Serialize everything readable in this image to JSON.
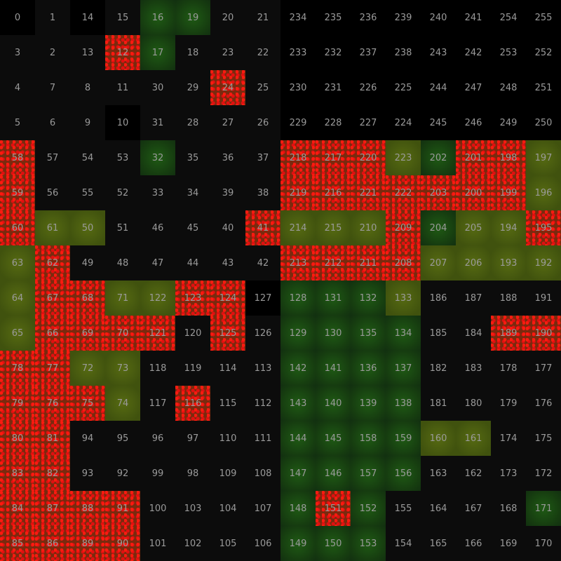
{
  "grid": [
    [
      0,
      1,
      14,
      15,
      16,
      19,
      20,
      21,
      234,
      235,
      236,
      239,
      240,
      241,
      254,
      255
    ],
    [
      3,
      2,
      13,
      12,
      17,
      18,
      23,
      22,
      233,
      232,
      237,
      238,
      243,
      242,
      253,
      252
    ],
    [
      4,
      7,
      8,
      11,
      30,
      29,
      24,
      25,
      230,
      231,
      226,
      225,
      244,
      247,
      248,
      251
    ],
    [
      5,
      6,
      9,
      10,
      31,
      28,
      27,
      26,
      229,
      228,
      227,
      224,
      245,
      246,
      249,
      250
    ],
    [
      58,
      57,
      54,
      53,
      32,
      35,
      36,
      37,
      218,
      217,
      220,
      223,
      202,
      201,
      198,
      197
    ],
    [
      59,
      56,
      55,
      52,
      33,
      34,
      39,
      38,
      219,
      216,
      221,
      222,
      203,
      200,
      199,
      196
    ],
    [
      60,
      61,
      50,
      51,
      46,
      45,
      40,
      41,
      214,
      215,
      210,
      209,
      204,
      205,
      194,
      195
    ],
    [
      63,
      62,
      49,
      48,
      47,
      44,
      43,
      42,
      213,
      212,
      211,
      208,
      207,
      206,
      193,
      192
    ],
    [
      64,
      67,
      68,
      71,
      122,
      123,
      124,
      127,
      128,
      131,
      132,
      133,
      186,
      187,
      188,
      191
    ],
    [
      65,
      66,
      69,
      70,
      121,
      120,
      125,
      126,
      129,
      130,
      135,
      134,
      185,
      184,
      189,
      190
    ],
    [
      78,
      77,
      72,
      73,
      118,
      119,
      114,
      113,
      142,
      141,
      136,
      137,
      182,
      183,
      178,
      177
    ],
    [
      79,
      76,
      75,
      74,
      117,
      116,
      115,
      112,
      143,
      140,
      139,
      138,
      181,
      180,
      179,
      176
    ],
    [
      80,
      81,
      94,
      95,
      96,
      97,
      110,
      111,
      144,
      145,
      158,
      159,
      160,
      161,
      174,
      175
    ],
    [
      83,
      82,
      93,
      92,
      99,
      98,
      109,
      108,
      147,
      146,
      157,
      156,
      163,
      162,
      173,
      172
    ],
    [
      84,
      87,
      88,
      91,
      100,
      103,
      104,
      107,
      148,
      151,
      152,
      155,
      164,
      167,
      168,
      171
    ],
    [
      85,
      86,
      89,
      90,
      101,
      102,
      105,
      106,
      149,
      150,
      153,
      154,
      165,
      166,
      169,
      170
    ]
  ],
  "heat": [
    "bkbkggkkbbbbbbbb",
    "kkkrgkkkbbbbbbbb",
    "kkkkkkrkbbbbbbbb",
    "kkkbkkkkbbbbbbbb",
    "rkkkgkkkrrrygrry",
    "rkkkkkkkrrrrrrry",
    "ryykkkkryyyrgyyr",
    "yrkkkkkkrrrryyyy",
    "yrryyrrbgggykkkk",
    "yrrrrkrkggggkkrr",
    "rryykkkkggggkkkk",
    "rrrykrkkggggkkkk",
    "rrkkkkkkggggyykk",
    "rrkkkkkkggggkkkk",
    "rrrrkkkkgrgkkkkg",
    "rrrrkkkkgggkkkkk"
  ],
  "colors": {
    "text": "#9a9a9a",
    "red": "#ff1a10",
    "green": "#1f5a14",
    "olive": "#566a12",
    "dark": "#0c0c0c"
  }
}
